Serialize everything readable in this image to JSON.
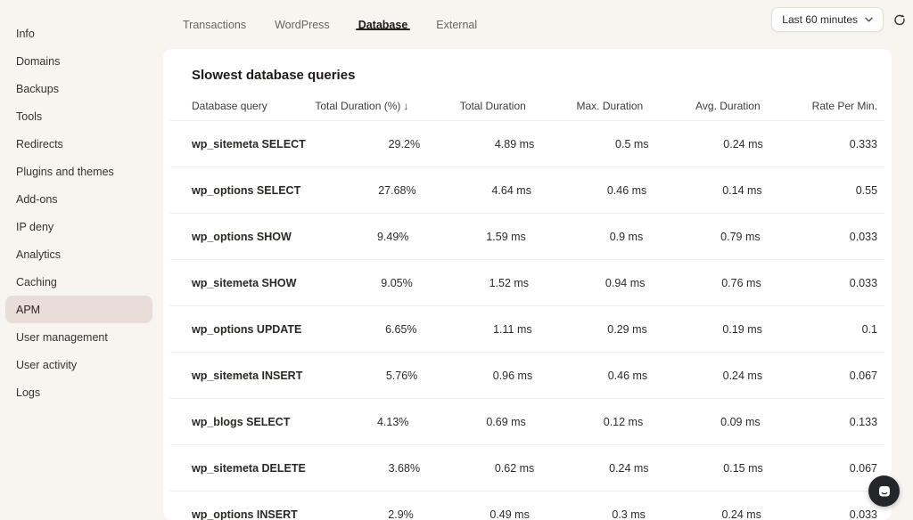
{
  "sidebar": {
    "items": [
      {
        "label": "Info"
      },
      {
        "label": "Domains"
      },
      {
        "label": "Backups"
      },
      {
        "label": "Tools"
      },
      {
        "label": "Redirects"
      },
      {
        "label": "Plugins and themes"
      },
      {
        "label": "Add-ons"
      },
      {
        "label": "IP deny"
      },
      {
        "label": "Analytics"
      },
      {
        "label": "Caching"
      },
      {
        "label": "APM",
        "active": true
      },
      {
        "label": "User management"
      },
      {
        "label": "User activity"
      },
      {
        "label": "Logs"
      }
    ]
  },
  "tabs": {
    "items": [
      {
        "label": "Transactions"
      },
      {
        "label": "WordPress"
      },
      {
        "label": "Database",
        "active": true
      },
      {
        "label": "External"
      }
    ]
  },
  "toolbar": {
    "time_range_label": "Last 60 minutes",
    "refresh_icon": "refresh",
    "chevron_icon": "chevron-down"
  },
  "main": {
    "title": "Slowest database queries",
    "table": {
      "columns": [
        {
          "label": "Database query"
        },
        {
          "label": "Total Duration (%)",
          "sort": "desc",
          "sort_glyph": "↓"
        },
        {
          "label": "Total Duration"
        },
        {
          "label": "Max. Duration"
        },
        {
          "label": "Avg. Duration"
        },
        {
          "label": "Rate Per Min."
        }
      ],
      "rows": [
        [
          "wp_sitemeta SELECT",
          "29.2%",
          "4.89 ms",
          "0.5 ms",
          "0.24 ms",
          "0.333"
        ],
        [
          "wp_options SELECT",
          "27.68%",
          "4.64 ms",
          "0.46 ms",
          "0.14 ms",
          "0.55"
        ],
        [
          "wp_options SHOW",
          "9.49%",
          "1.59 ms",
          "0.9 ms",
          "0.79 ms",
          "0.033"
        ],
        [
          "wp_sitemeta SHOW",
          "9.05%",
          "1.52 ms",
          "0.94 ms",
          "0.76 ms",
          "0.033"
        ],
        [
          "wp_options UPDATE",
          "6.65%",
          "1.11 ms",
          "0.29 ms",
          "0.19 ms",
          "0.1"
        ],
        [
          "wp_sitemeta INSERT",
          "5.76%",
          "0.96 ms",
          "0.46 ms",
          "0.24 ms",
          "0.067"
        ],
        [
          "wp_blogs SELECT",
          "4.13%",
          "0.69 ms",
          "0.12 ms",
          "0.09 ms",
          "0.133"
        ],
        [
          "wp_sitemeta DELETE",
          "3.68%",
          "0.62 ms",
          "0.24 ms",
          "0.15 ms",
          "0.067"
        ],
        [
          "wp_options INSERT",
          "2.9%",
          "0.49 ms",
          "0.3 ms",
          "0.24 ms",
          "0.033"
        ]
      ]
    }
  },
  "theme": {
    "bg": "#f8f4f0",
    "card": "#ffffff",
    "active-item-bg": "#e9ded7",
    "divider": "#f3ece4",
    "chat": "#24262b"
  }
}
